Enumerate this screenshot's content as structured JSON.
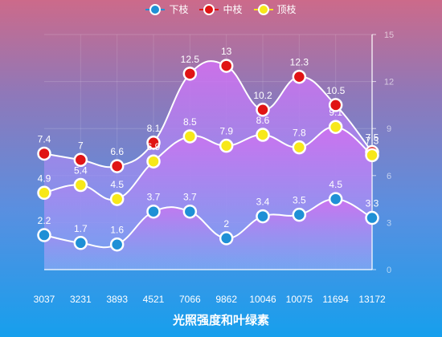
{
  "chart_data": {
    "type": "line",
    "categories": [
      "3037",
      "3231",
      "3893",
      "4521",
      "7066",
      "9862",
      "10046",
      "10075",
      "11694",
      "13172"
    ],
    "series": [
      {
        "name": "下枝",
        "color": "#1e90d6",
        "values": [
          2.2,
          1.7,
          1.6,
          3.7,
          3.7,
          2,
          3.4,
          3.5,
          4.5,
          3.3
        ]
      },
      {
        "name": "中枝",
        "color": "#e01414",
        "values": [
          7.4,
          7,
          6.6,
          8.1,
          12.5,
          13,
          10.2,
          12.3,
          10.5,
          7.5
        ]
      },
      {
        "name": "顶枝",
        "color": "#f7e81a",
        "values": [
          4.9,
          5.4,
          4.5,
          6.9,
          8.5,
          7.9,
          8.6,
          7.8,
          9.1,
          7.3
        ]
      }
    ],
    "xlabel": "光照强度和叶绿素",
    "ylabel": "",
    "ylim": [
      0,
      15
    ],
    "yticks": [
      0,
      3,
      6,
      9,
      12,
      15
    ],
    "y_axis_position": "right",
    "grid": true,
    "legend_position": "top-center",
    "area_fill_colors": [
      "#d070f0",
      "#7aa6f2"
    ]
  }
}
